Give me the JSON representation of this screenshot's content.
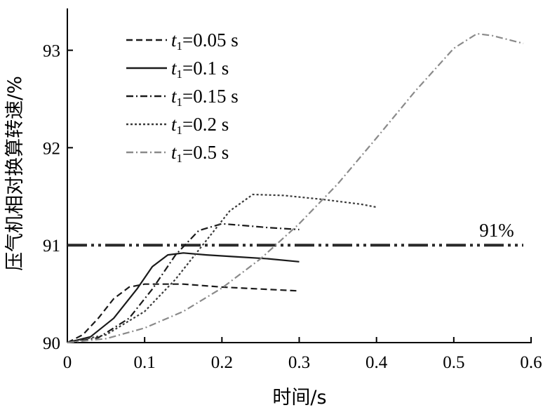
{
  "chart_data": {
    "type": "line",
    "xlabel": "时间/s",
    "ylabel": "压气机相对换算转速/%",
    "xlim": [
      0,
      0.6
    ],
    "ylim": [
      90,
      93.5
    ],
    "x_ticks": [
      "0",
      "0.1",
      "0.2",
      "0.3",
      "0.4",
      "0.5",
      "0.6"
    ],
    "x_tick_values": [
      0,
      0.1,
      0.2,
      0.3,
      0.4,
      0.5,
      0.6
    ],
    "y_ticks": [
      "90",
      "91",
      "92",
      "93"
    ],
    "y_tick_values": [
      90,
      91,
      92,
      93
    ],
    "grid": false,
    "legend_position": "top-left",
    "reference_line": {
      "y": 91,
      "label": "91%",
      "x_range": [
        0,
        0.59
      ]
    },
    "series": [
      {
        "name": "t1=0.05 s",
        "legend_var": "t",
        "legend_sub": "1",
        "legend_rest": "=0.05 s",
        "style": "dashed",
        "color": "#1a1a1a",
        "x": [
          0,
          0.02,
          0.04,
          0.06,
          0.08,
          0.1,
          0.12,
          0.15,
          0.2,
          0.25,
          0.3
        ],
        "y": [
          90.0,
          90.08,
          90.25,
          90.45,
          90.57,
          90.6,
          90.6,
          90.6,
          90.57,
          90.55,
          90.53
        ]
      },
      {
        "name": "t1=0.1 s",
        "legend_var": "t",
        "legend_sub": "1",
        "legend_rest": "=0.1 s",
        "style": "solid",
        "color": "#1a1a1a",
        "x": [
          0,
          0.03,
          0.06,
          0.09,
          0.11,
          0.13,
          0.15,
          0.18,
          0.22,
          0.26,
          0.3
        ],
        "y": [
          90.0,
          90.06,
          90.25,
          90.55,
          90.78,
          90.9,
          90.92,
          90.9,
          90.88,
          90.86,
          90.83
        ]
      },
      {
        "name": "t1=0.15 s",
        "legend_var": "t",
        "legend_sub": "1",
        "legend_rest": "=0.15 s",
        "style": "dashdot",
        "color": "#1a1a1a",
        "x": [
          0,
          0.04,
          0.08,
          0.11,
          0.14,
          0.17,
          0.2,
          0.23,
          0.26,
          0.3
        ],
        "y": [
          90.0,
          90.05,
          90.25,
          90.55,
          90.9,
          91.15,
          91.22,
          91.2,
          91.18,
          91.16
        ]
      },
      {
        "name": "t1=0.2 s",
        "legend_var": "t",
        "legend_sub": "1",
        "legend_rest": "=0.2 s",
        "style": "dotted",
        "color": "#3a3a3a",
        "x": [
          0,
          0.05,
          0.1,
          0.14,
          0.18,
          0.21,
          0.24,
          0.28,
          0.33,
          0.38,
          0.4
        ],
        "y": [
          90.0,
          90.08,
          90.32,
          90.65,
          91.05,
          91.35,
          91.52,
          91.51,
          91.47,
          91.42,
          91.39
        ]
      },
      {
        "name": "t1=0.5 s",
        "legend_var": "t",
        "legend_sub": "1",
        "legend_rest": "=0.5 s",
        "style": "dashdot",
        "color": "#8a8a8a",
        "x": [
          0,
          0.05,
          0.1,
          0.15,
          0.2,
          0.25,
          0.3,
          0.35,
          0.4,
          0.45,
          0.5,
          0.53,
          0.55,
          0.59
        ],
        "y": [
          90.0,
          90.04,
          90.15,
          90.32,
          90.56,
          90.86,
          91.22,
          91.63,
          92.1,
          92.58,
          93.02,
          93.17,
          93.15,
          93.07
        ]
      }
    ]
  }
}
